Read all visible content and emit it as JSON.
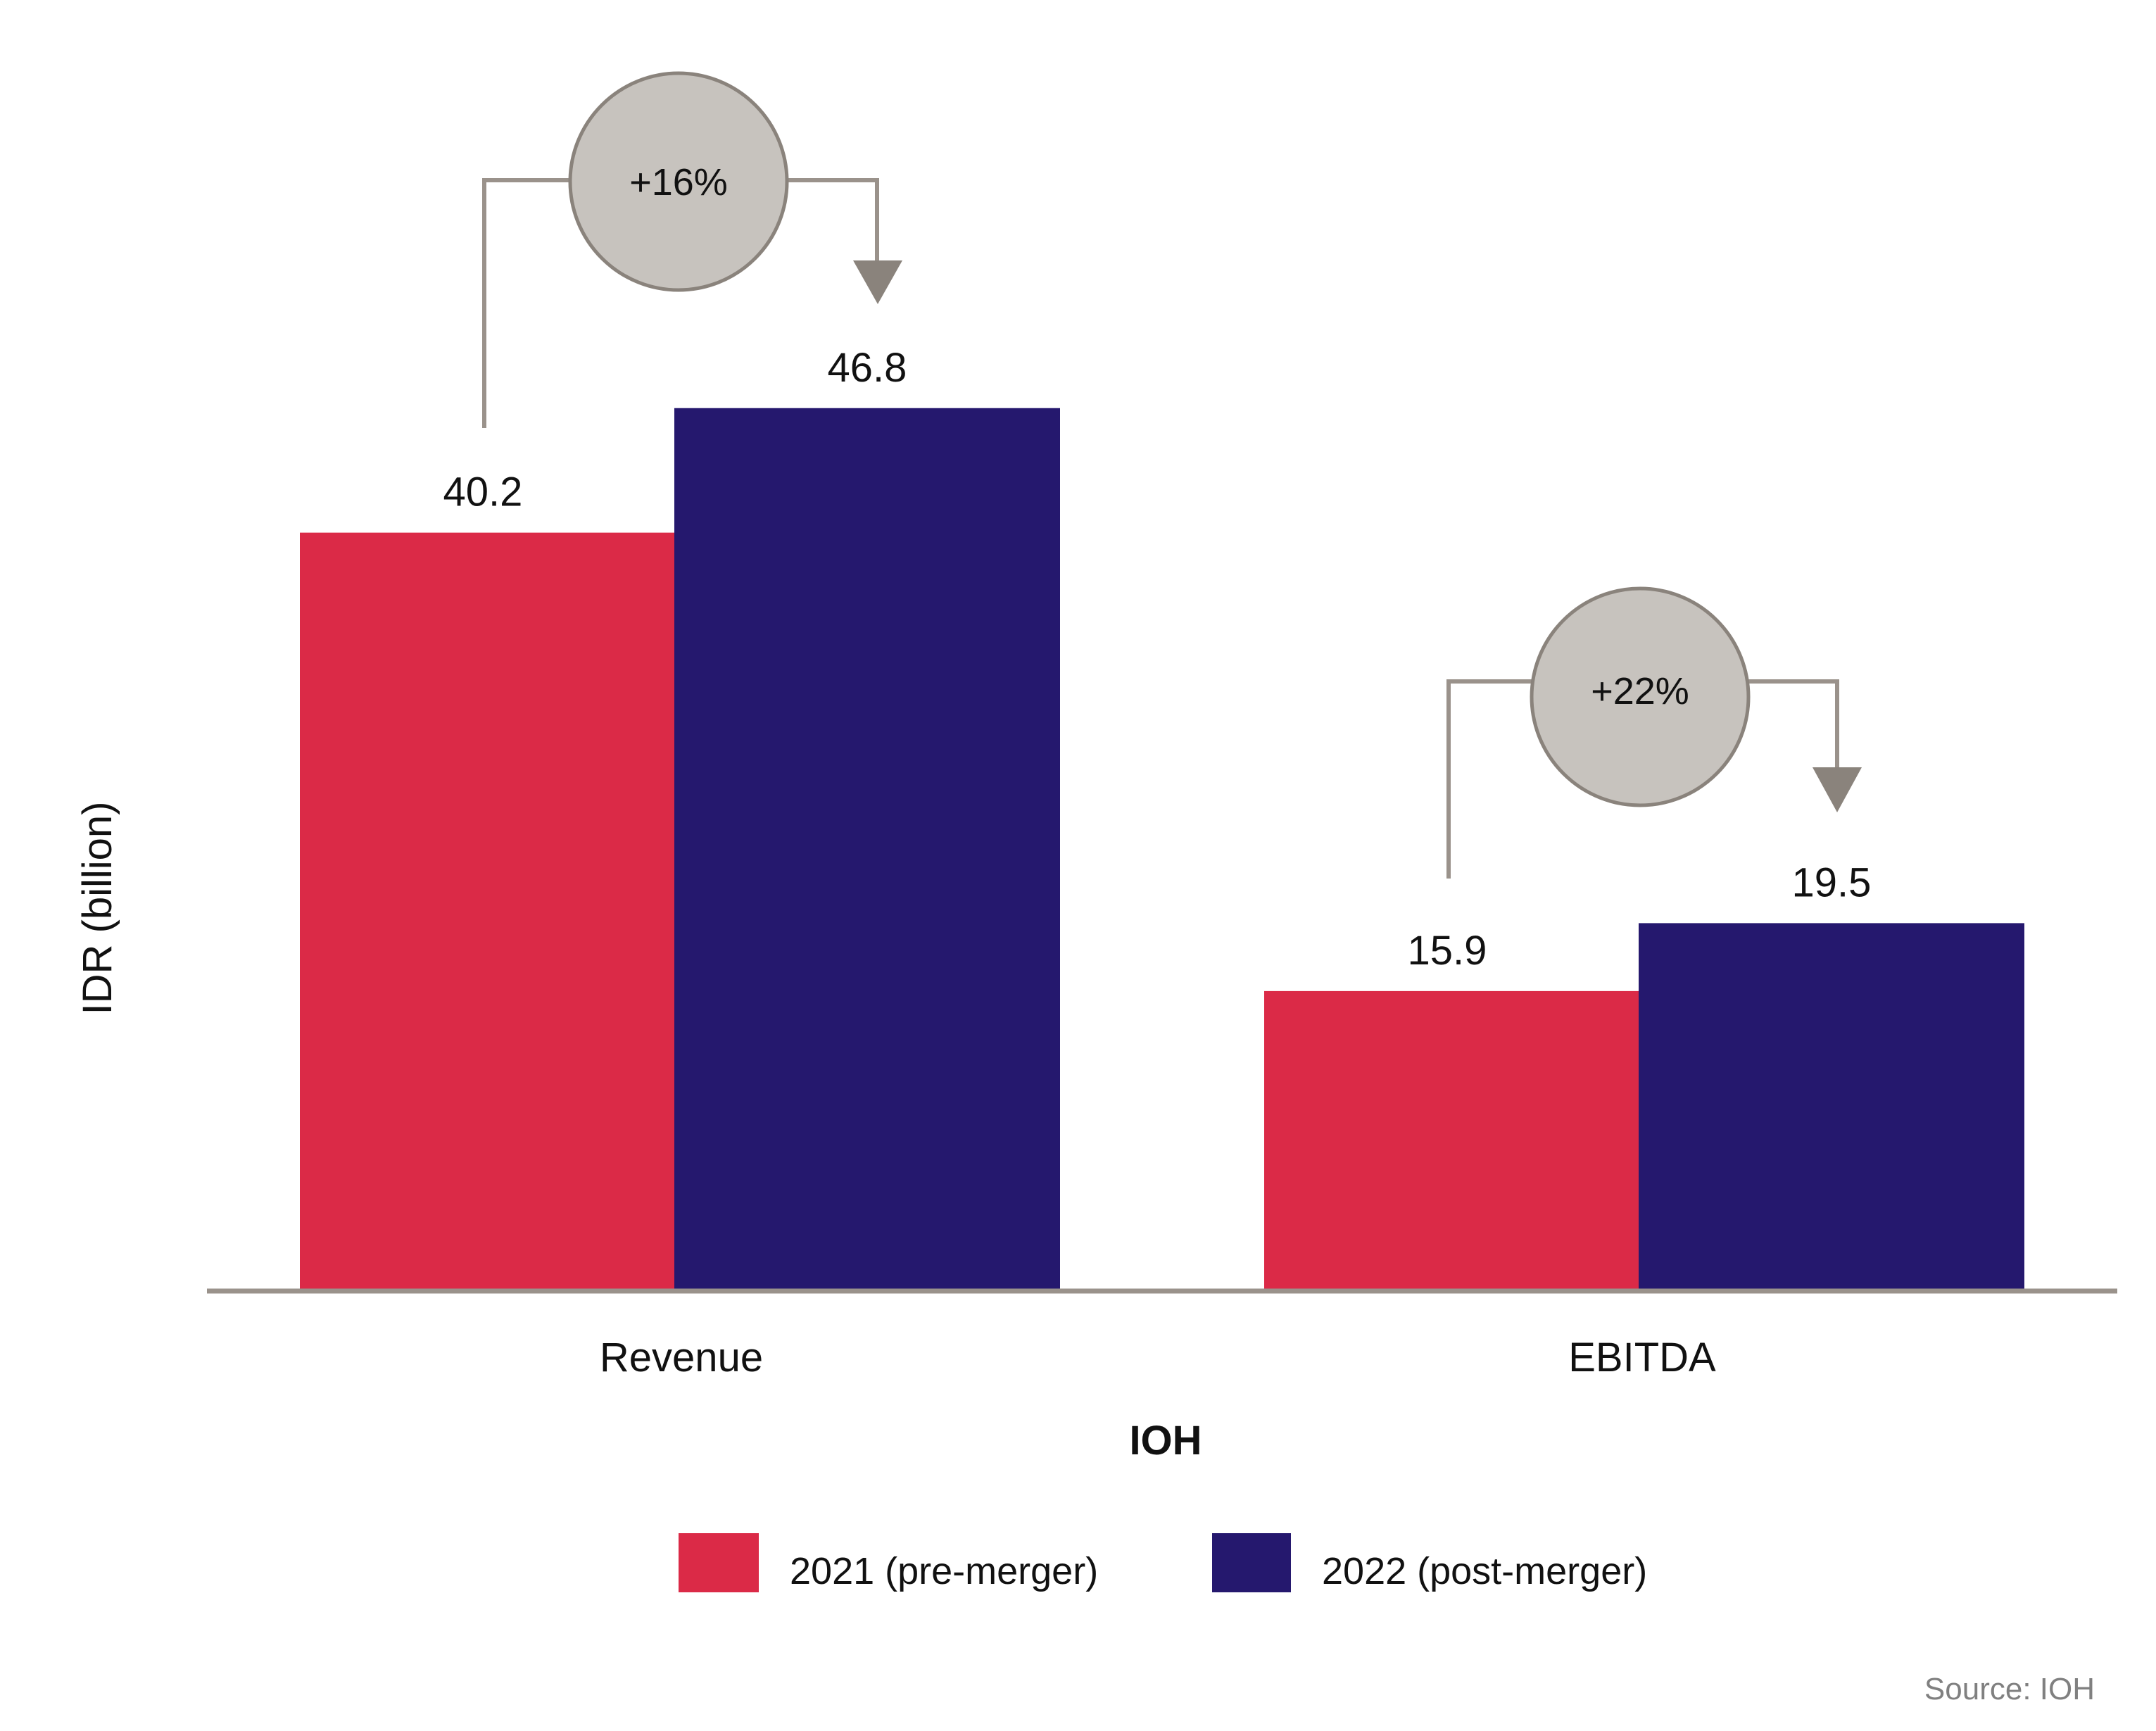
{
  "chart_data": {
    "type": "bar",
    "categories": [
      "Revenue",
      "EBITDA"
    ],
    "series": [
      {
        "name": "2021 (pre-merger)",
        "values": [
          40.2,
          15.9
        ],
        "color": "#DB2A47"
      },
      {
        "name": "2022 (post-merger)",
        "values": [
          46.8,
          19.5
        ],
        "color": "#25186E"
      }
    ],
    "value_labels": [
      [
        "40.2",
        "15.9"
      ],
      [
        "46.8",
        "19.5"
      ]
    ],
    "growth": [
      "+16%",
      "+22%"
    ],
    "ylabel": "IDR (billion)",
    "xlabel": "IOH",
    "ylim": [
      0,
      51
    ],
    "grid": false,
    "legend_position": "bottom-center",
    "source": "Source: IOH",
    "axis_color": "#9A928B",
    "bubble_fill": "#C7C3BE",
    "bubble_stroke": "#8A837C",
    "connector_color": "#9A928B"
  }
}
